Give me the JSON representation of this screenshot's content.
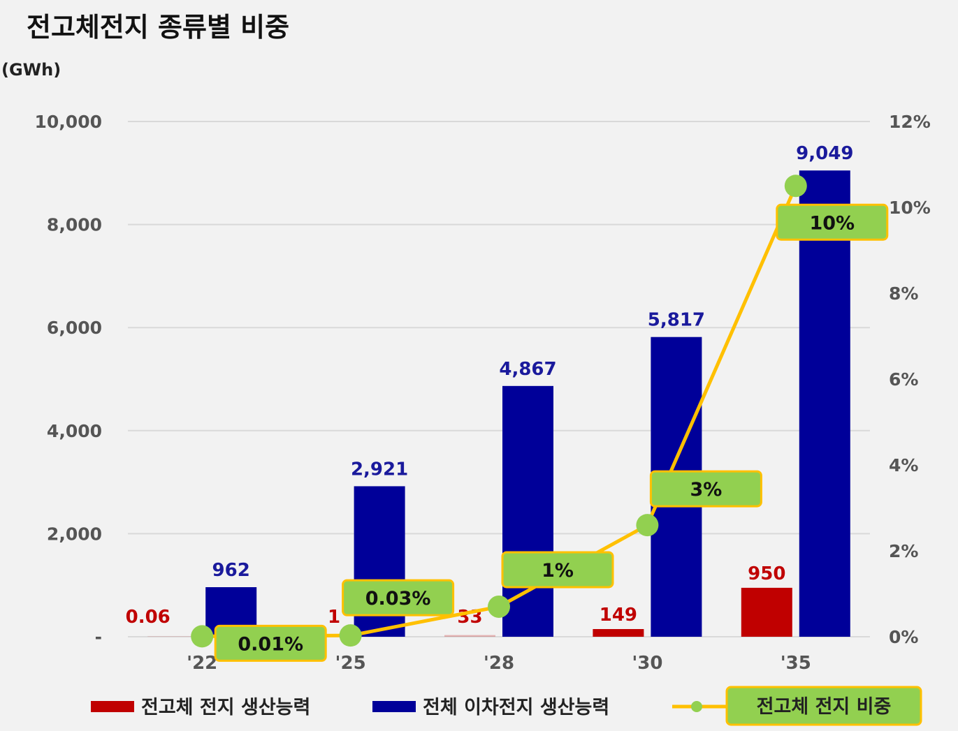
{
  "chart_data": {
    "type": "bar",
    "title": "전고체전지 종류별 비중",
    "unit_label": "(GWh)",
    "categories": [
      "'22",
      "'25",
      "'28",
      "'30",
      "'35"
    ],
    "series": [
      {
        "name": "전고체 전지 생산능력",
        "type": "bar",
        "color": "#c00000",
        "values": [
          0.06,
          1,
          33,
          149,
          950
        ],
        "labels": [
          "0.06",
          "1",
          "33",
          "149",
          "950"
        ]
      },
      {
        "name": "전체 이차전지 생산능력",
        "type": "bar",
        "color": "#000099",
        "values": [
          962,
          2921,
          4867,
          5817,
          9049
        ],
        "labels": [
          "962",
          "2,921",
          "4,867",
          "5,817",
          "9,049"
        ]
      },
      {
        "name": "전고체 전지 비중",
        "type": "line",
        "axis": "right",
        "color": "#ffc000",
        "marker_color": "#92d050",
        "values": [
          0.0001,
          0.0003,
          0.007,
          0.026,
          0.105
        ],
        "labels": [
          "0.01%",
          "0.03%",
          "1%",
          "3%",
          "10%"
        ]
      }
    ],
    "y_left": {
      "ylim": [
        0,
        10000
      ],
      "ticks": [
        0,
        2000,
        4000,
        6000,
        8000,
        10000
      ],
      "tick_labels": [
        "-",
        "2,000",
        "4,000",
        "6,000",
        "8,000",
        "10,000"
      ]
    },
    "y_right": {
      "ylim": [
        0,
        0.12
      ],
      "ticks": [
        0,
        0.02,
        0.04,
        0.06,
        0.08,
        0.1,
        0.12
      ],
      "tick_labels": [
        "0%",
        "2%",
        "4%",
        "6%",
        "8%",
        "10%",
        "12%"
      ]
    },
    "grid": true,
    "legend_position": "bottom",
    "colors": {
      "background": "#f2f2f2",
      "grid": "#d9d9d9",
      "label_box_fill": "#92d050",
      "label_box_border": "#ffc000"
    }
  }
}
